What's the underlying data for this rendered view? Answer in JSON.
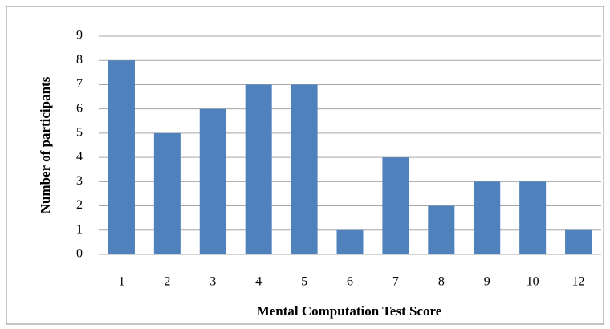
{
  "chart_data": {
    "type": "bar",
    "categories": [
      "1",
      "2",
      "3",
      "4",
      "5",
      "6",
      "7",
      "8",
      "9",
      "10",
      "12"
    ],
    "values": [
      8,
      5,
      6,
      7,
      7,
      1,
      4,
      2,
      3,
      3,
      1
    ],
    "color": "#4f81bd",
    "x_label": "Mental Computation Test Score",
    "y_label": "Number of participants",
    "ylim": [
      0,
      9
    ],
    "yticks": [
      0,
      1,
      2,
      3,
      4,
      5,
      6,
      7,
      8,
      9
    ],
    "grid": true
  }
}
